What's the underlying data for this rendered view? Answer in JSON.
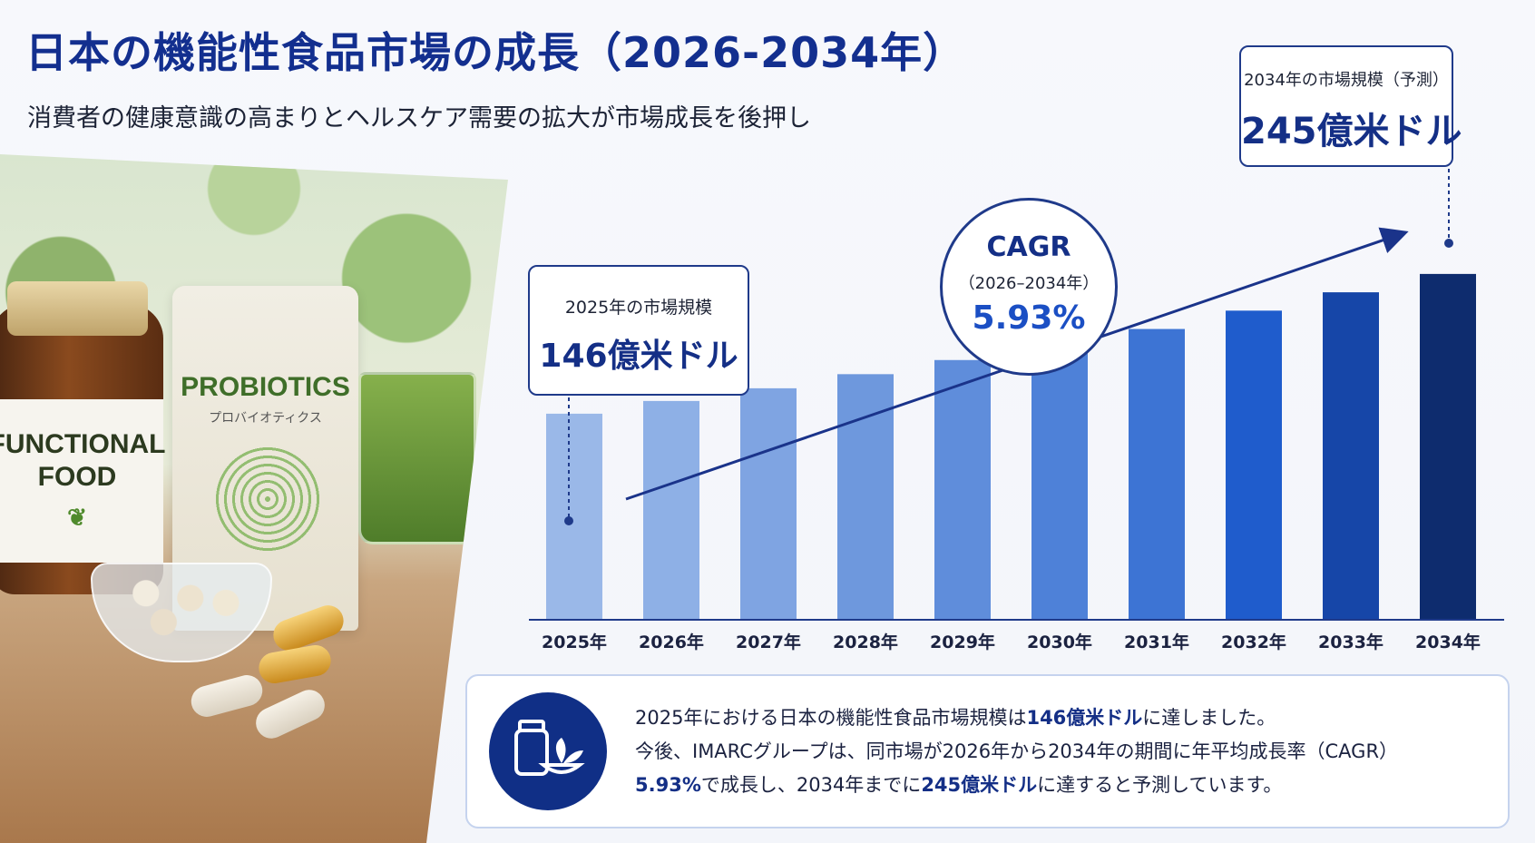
{
  "title": "日本の機能性食品市場の成長（2026-2034年）",
  "subtitle": "消費者の健康意識の高まりとヘルスケア需要の拡大が市場成長を後押し",
  "photo": {
    "jar_label_line1": "FUNCTIONAL",
    "jar_label_line2": "FOOD",
    "pouch_title": "PROBIOTICS",
    "pouch_subtitle": "プロバイオティクス"
  },
  "callouts": {
    "start": {
      "label": "2025年の市場規模",
      "value": "146億米ドル"
    },
    "end": {
      "label": "2034年の市場規模（予測）",
      "value": "245億米ドル"
    },
    "cagr": {
      "title": "CAGR",
      "period": "（2026–2034年）",
      "value": "5.93%"
    }
  },
  "colors": {
    "title": "#132f8f",
    "bars": [
      "#9ab8e8",
      "#8eb0e6",
      "#7fa4e2",
      "#6e98dd",
      "#5f8ddb",
      "#4e81d8",
      "#3d74d4",
      "#1f5ccc",
      "#1646a8",
      "#0e2c6e"
    ],
    "arrow": "#1a338a",
    "axis": "#1f3a8a"
  },
  "chart_data": {
    "type": "bar",
    "categories": [
      "2025年",
      "2026年",
      "2027年",
      "2028年",
      "2029年",
      "2030年",
      "2031年",
      "2032年",
      "2033年",
      "2034年"
    ],
    "values": [
      14.6,
      15.5,
      16.4,
      17.4,
      18.4,
      19.5,
      20.6,
      21.9,
      23.2,
      24.5
    ],
    "unit": "億米ドル (x10)",
    "ylim": [
      0,
      27
    ],
    "trend_arrow": true,
    "grid": false,
    "legend": "none"
  },
  "info": {
    "line1_a": "2025年における日本の機能性食品市場規模は",
    "line1_b": "146億米ドル",
    "line1_c": "に達しました。",
    "line2": "今後、IMARCグループは、同市場が2026年から2034年の期間に年平均成長率（CAGR）",
    "line3_a": "5.93%",
    "line3_b": "で成長し、2034年までに",
    "line3_c": "245億米ドル",
    "line3_d": "に達すると予測しています。"
  }
}
